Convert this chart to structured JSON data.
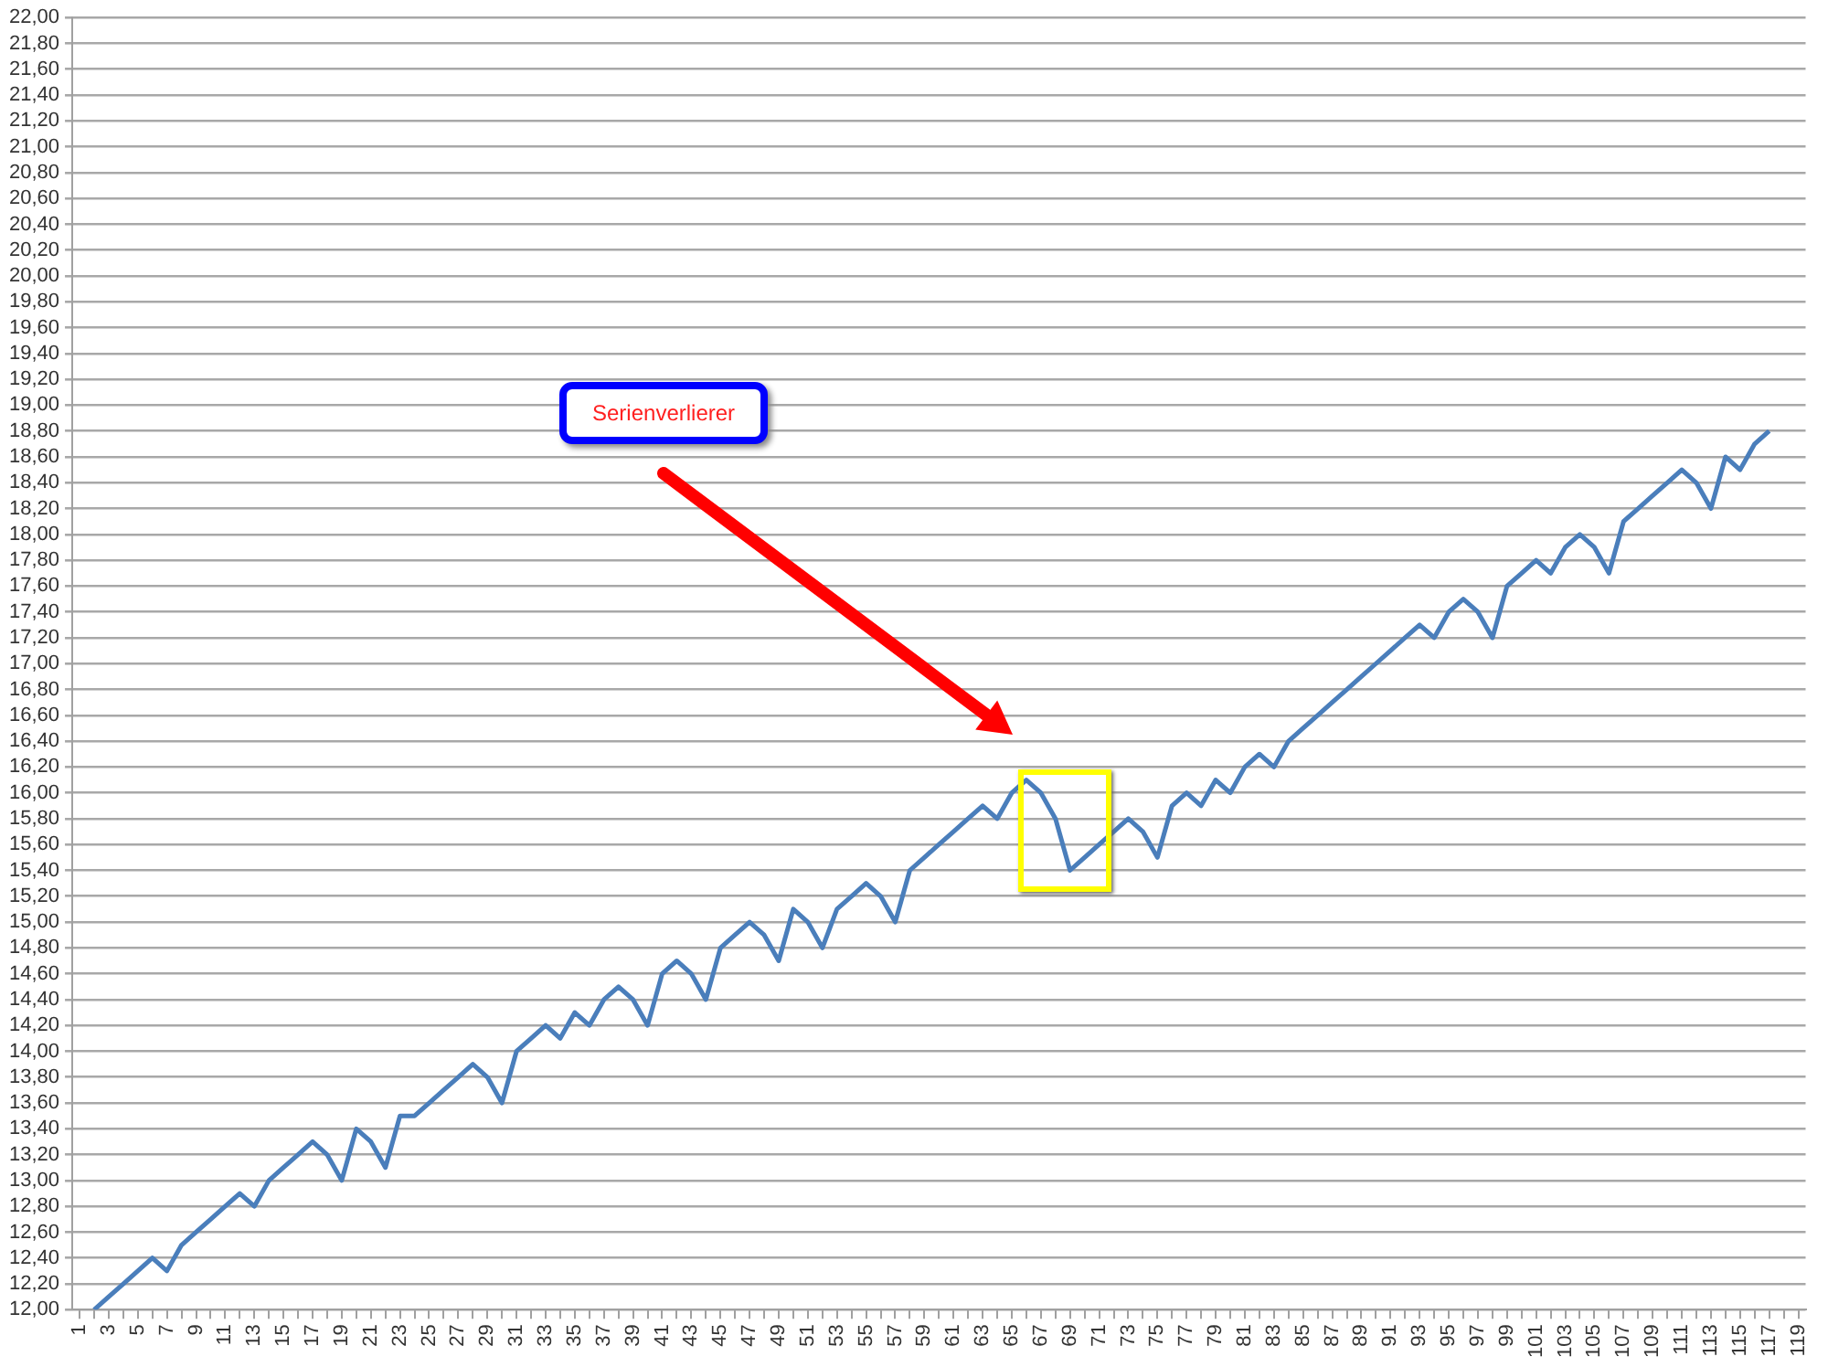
{
  "chart_data": {
    "type": "line",
    "categories": [
      "1",
      null,
      "3",
      null,
      "5",
      null,
      "7",
      null,
      "9",
      null,
      "11",
      null,
      "13",
      null,
      "15",
      null,
      "17",
      null,
      "19",
      null,
      "21",
      null,
      "23",
      null,
      "25",
      null,
      "27",
      null,
      "29",
      null,
      "31",
      null,
      "33",
      null,
      "35",
      null,
      "37",
      null,
      "39",
      null,
      "41",
      null,
      "43",
      null,
      "45",
      null,
      "47",
      null,
      "49",
      null,
      "51",
      null,
      "53",
      null,
      "55",
      null,
      "57",
      null,
      "59",
      null,
      "61",
      null,
      "63",
      null,
      "65",
      null,
      "67",
      null,
      "69",
      null,
      "71",
      null,
      "73",
      null,
      "75",
      null,
      "77",
      null,
      "79",
      null,
      "81",
      null,
      "83",
      null,
      "85",
      null,
      "87",
      null,
      "89",
      null,
      "91",
      null,
      "93",
      null,
      "95",
      null,
      "97",
      null,
      "99",
      null,
      "101",
      null,
      "103",
      null,
      "105",
      null,
      "107",
      null,
      "109",
      null,
      "111",
      null,
      "113",
      null,
      "115",
      null,
      "117",
      null,
      "119"
    ],
    "series": [
      {
        "color": "#4a7ebb",
        "values": [
          null,
          12.0,
          12.1,
          12.2,
          12.3,
          12.4,
          12.3,
          12.5,
          12.6,
          12.7,
          12.8,
          12.9,
          12.8,
          13.0,
          13.1,
          13.2,
          13.3,
          13.2,
          13.0,
          13.4,
          13.3,
          13.1,
          13.5,
          13.5,
          13.6,
          13.7,
          13.8,
          13.9,
          13.8,
          13.6,
          14.0,
          14.1,
          14.2,
          14.1,
          14.3,
          14.2,
          14.4,
          14.5,
          14.4,
          14.2,
          14.6,
          14.7,
          14.6,
          14.4,
          14.8,
          14.9,
          15.0,
          14.9,
          14.7,
          15.1,
          15.0,
          14.8,
          15.1,
          15.2,
          15.3,
          15.2,
          15.0,
          15.4,
          15.5,
          15.6,
          15.7,
          15.8,
          15.9,
          15.8,
          16.0,
          16.1,
          16.0,
          15.8,
          15.4,
          15.5,
          15.6,
          15.7,
          15.8,
          15.7,
          15.5,
          15.9,
          16.0,
          15.9,
          16.1,
          16.0,
          16.2,
          16.3,
          16.2,
          16.4,
          16.5,
          16.6,
          16.7,
          16.8,
          16.9,
          17.0,
          17.1,
          17.2,
          17.3,
          17.2,
          17.4,
          17.5,
          17.4,
          17.2,
          17.6,
          17.7,
          17.8,
          17.7,
          17.9,
          18.0,
          17.9,
          17.7,
          18.1,
          18.2,
          18.3,
          18.4,
          18.5,
          18.4,
          18.2,
          18.6,
          18.5,
          18.7,
          18.8,
          null,
          null
        ]
      }
    ],
    "ylim": [
      12,
      22
    ],
    "yticks": [
      {
        "value": 12,
        "label": "12,00"
      },
      {
        "value": 12.2,
        "label": "12,20"
      },
      {
        "value": 12.4,
        "label": "12,40"
      },
      {
        "value": 12.6,
        "label": "12,60"
      },
      {
        "value": 12.8,
        "label": "12,80"
      },
      {
        "value": 13,
        "label": "13,00"
      },
      {
        "value": 13.2,
        "label": "13,20"
      },
      {
        "value": 13.4,
        "label": "13,40"
      },
      {
        "value": 13.6,
        "label": "13,60"
      },
      {
        "value": 13.8,
        "label": "13,80"
      },
      {
        "value": 14,
        "label": "14,00"
      },
      {
        "value": 14.2,
        "label": "14,20"
      },
      {
        "value": 14.4,
        "label": "14,40"
      },
      {
        "value": 14.6,
        "label": "14,60"
      },
      {
        "value": 14.8,
        "label": "14,80"
      },
      {
        "value": 15,
        "label": "15,00"
      },
      {
        "value": 15.2,
        "label": "15,20"
      },
      {
        "value": 15.4,
        "label": "15,40"
      },
      {
        "value": 15.6,
        "label": "15,60"
      },
      {
        "value": 15.8,
        "label": "15,80"
      },
      {
        "value": 16,
        "label": "16,00"
      },
      {
        "value": 16.2,
        "label": "16,20"
      },
      {
        "value": 16.4,
        "label": "16,40"
      },
      {
        "value": 16.6,
        "label": "16,60"
      },
      {
        "value": 16.8,
        "label": "16,80"
      },
      {
        "value": 17,
        "label": "17,00"
      },
      {
        "value": 17.2,
        "label": "17,20"
      },
      {
        "value": 17.4,
        "label": "17,40"
      },
      {
        "value": 17.6,
        "label": "17,60"
      },
      {
        "value": 17.8,
        "label": "17,80"
      },
      {
        "value": 18,
        "label": "18,00"
      },
      {
        "value": 18.2,
        "label": "18,20"
      },
      {
        "value": 18.4,
        "label": "18,40"
      },
      {
        "value": 18.6,
        "label": "18,60"
      },
      {
        "value": 18.8,
        "label": "18,80"
      },
      {
        "value": 19,
        "label": "19,00"
      },
      {
        "value": 19.2,
        "label": "19,20"
      },
      {
        "value": 19.4,
        "label": "19,40"
      },
      {
        "value": 19.6,
        "label": "19,60"
      },
      {
        "value": 19.8,
        "label": "19,80"
      },
      {
        "value": 20,
        "label": "20,00"
      },
      {
        "value": 20.2,
        "label": "20,20"
      },
      {
        "value": 20.4,
        "label": "20,40"
      },
      {
        "value": 20.6,
        "label": "20,60"
      },
      {
        "value": 20.8,
        "label": "20,80"
      },
      {
        "value": 21,
        "label": "21,00"
      },
      {
        "value": 21.2,
        "label": "21,20"
      },
      {
        "value": 21.4,
        "label": "21,40"
      },
      {
        "value": 21.6,
        "label": "21,60"
      },
      {
        "value": 21.8,
        "label": "21,80"
      },
      {
        "value": 22,
        "label": "22,00"
      }
    ],
    "grid": "y",
    "legend": false,
    "marker": "none",
    "line_style": "solid",
    "annotations": [
      "Serienverlierer"
    ]
  }
}
